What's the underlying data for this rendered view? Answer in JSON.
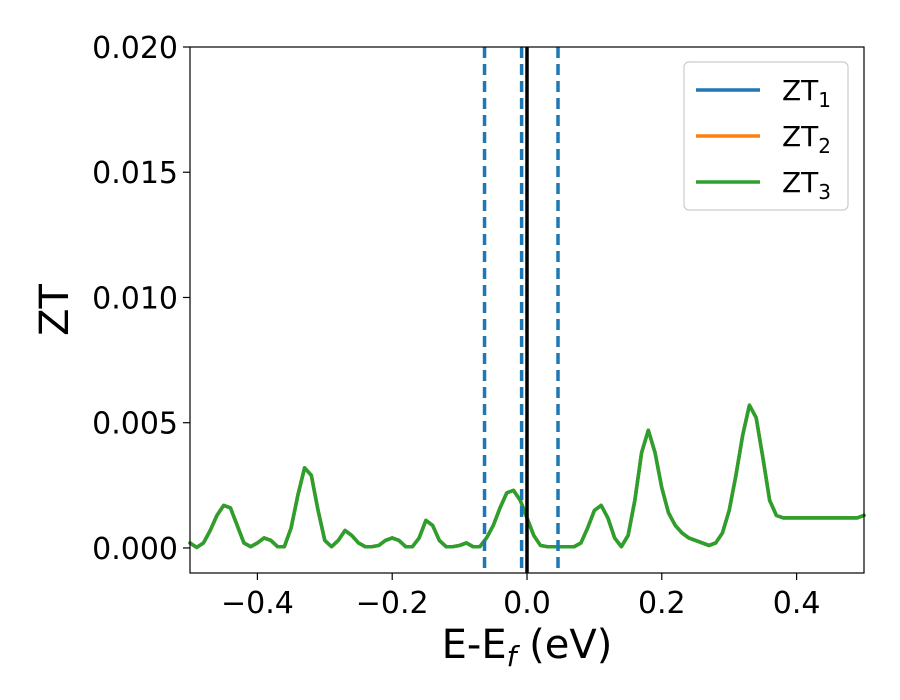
{
  "chart_data": {
    "type": "line",
    "xlabel": {
      "main": "E-E",
      "sub": "f",
      "tail": " (eV)"
    },
    "ylabel": "ZT",
    "xlim": [
      -0.5,
      0.5
    ],
    "ylim": [
      -0.001,
      0.02
    ],
    "x_ticks": [
      -0.4,
      -0.2,
      0.0,
      0.2,
      0.4
    ],
    "x_tick_labels": [
      "−0.4",
      "−0.2",
      "0.0",
      "0.2",
      "0.4"
    ],
    "y_ticks": [
      0.0,
      0.005,
      0.01,
      0.015,
      0.02
    ],
    "y_tick_labels": [
      "0.000",
      "0.005",
      "0.010",
      "0.015",
      "0.020"
    ],
    "grid": false,
    "legend_position": "top-right",
    "vlines_dashed": {
      "color": "#1f77b4",
      "x": [
        -0.063,
        -0.008,
        0.046
      ]
    },
    "vline_solid": {
      "color": "#000000",
      "x": 0.0
    },
    "x": [
      -0.5,
      -0.49,
      -0.48,
      -0.47,
      -0.46,
      -0.45,
      -0.44,
      -0.43,
      -0.42,
      -0.41,
      -0.4,
      -0.39,
      -0.38,
      -0.37,
      -0.36,
      -0.35,
      -0.34,
      -0.33,
      -0.32,
      -0.31,
      -0.3,
      -0.29,
      -0.28,
      -0.27,
      -0.26,
      -0.25,
      -0.24,
      -0.23,
      -0.22,
      -0.21,
      -0.2,
      -0.19,
      -0.18,
      -0.17,
      -0.16,
      -0.15,
      -0.14,
      -0.13,
      -0.12,
      -0.11,
      -0.1,
      -0.09,
      -0.08,
      -0.07,
      -0.06,
      -0.05,
      -0.04,
      -0.03,
      -0.02,
      -0.01,
      0.0,
      0.01,
      0.02,
      0.03,
      0.04,
      0.05,
      0.06,
      0.07,
      0.08,
      0.09,
      0.1,
      0.11,
      0.12,
      0.13,
      0.14,
      0.15,
      0.16,
      0.17,
      0.18,
      0.19,
      0.2,
      0.21,
      0.22,
      0.23,
      0.24,
      0.25,
      0.26,
      0.27,
      0.28,
      0.29,
      0.3,
      0.31,
      0.32,
      0.33,
      0.34,
      0.35,
      0.36,
      0.37,
      0.38,
      0.39,
      0.4,
      0.41,
      0.42,
      0.43,
      0.44,
      0.45,
      0.46,
      0.47,
      0.48,
      0.49,
      0.5
    ],
    "series": [
      {
        "name": "ZT",
        "sub": "1",
        "color": "#1f77b4",
        "values": [
          0.0002,
          2e-05,
          0.0002,
          0.0007,
          0.0013,
          0.0017,
          0.0016,
          0.0009,
          0.0002,
          5e-05,
          0.0002,
          0.0004,
          0.0003,
          5e-05,
          5e-05,
          0.0008,
          0.0021,
          0.0032,
          0.0029,
          0.0015,
          0.0003,
          5e-05,
          0.0003,
          0.0007,
          0.0005,
          0.0002,
          5e-05,
          5e-05,
          0.0001,
          0.0003,
          0.0004,
          0.0003,
          5e-05,
          5e-05,
          0.0004,
          0.0011,
          0.0009,
          0.0003,
          5e-05,
          5e-05,
          0.0001,
          0.0002,
          5e-05,
          5e-05,
          0.0004,
          0.0009,
          0.0016,
          0.0022,
          0.0023,
          0.0019,
          0.0012,
          0.0005,
          0.0001,
          5e-05,
          5e-05,
          5e-05,
          5e-05,
          5e-05,
          0.0002,
          0.0008,
          0.0015,
          0.0017,
          0.0012,
          0.0004,
          5e-05,
          0.0005,
          0.0019,
          0.0038,
          0.0047,
          0.0038,
          0.0024,
          0.0014,
          0.0009,
          0.0006,
          0.0004,
          0.0003,
          0.0002,
          0.0001,
          0.0002,
          0.0006,
          0.0015,
          0.0029,
          0.0045,
          0.0057,
          0.0052,
          0.0036,
          0.0019,
          0.0013,
          0.0012,
          0.0012,
          0.0012,
          0.0012,
          0.0012,
          0.0012,
          0.0012,
          0.0012,
          0.0012,
          0.0012,
          0.0012,
          0.0012,
          0.0013
        ]
      },
      {
        "name": "ZT",
        "sub": "2",
        "color": "#ff7f0e",
        "values": [
          0.0002,
          2e-05,
          0.0002,
          0.0007,
          0.0013,
          0.0017,
          0.0016,
          0.0009,
          0.0002,
          5e-05,
          0.0002,
          0.0004,
          0.0003,
          5e-05,
          5e-05,
          0.0008,
          0.0021,
          0.0032,
          0.0029,
          0.0015,
          0.0003,
          5e-05,
          0.0003,
          0.0007,
          0.0005,
          0.0002,
          5e-05,
          5e-05,
          0.0001,
          0.0003,
          0.0004,
          0.0003,
          5e-05,
          5e-05,
          0.0004,
          0.0011,
          0.0009,
          0.0003,
          5e-05,
          5e-05,
          0.0001,
          0.0002,
          5e-05,
          5e-05,
          0.0004,
          0.0009,
          0.0016,
          0.0022,
          0.0023,
          0.0019,
          0.0012,
          0.0005,
          0.0001,
          5e-05,
          5e-05,
          5e-05,
          5e-05,
          5e-05,
          0.0002,
          0.0008,
          0.0015,
          0.0017,
          0.0012,
          0.0004,
          5e-05,
          0.0005,
          0.0019,
          0.0038,
          0.0047,
          0.0038,
          0.0024,
          0.0014,
          0.0009,
          0.0006,
          0.0004,
          0.0003,
          0.0002,
          0.0001,
          0.0002,
          0.0006,
          0.0015,
          0.0029,
          0.0045,
          0.0057,
          0.0052,
          0.0036,
          0.0019,
          0.0013,
          0.0012,
          0.0012,
          0.0012,
          0.0012,
          0.0012,
          0.0012,
          0.0012,
          0.0012,
          0.0012,
          0.0012,
          0.0012,
          0.0012,
          0.0013
        ]
      },
      {
        "name": "ZT",
        "sub": "3",
        "color": "#2ca02c",
        "values": [
          0.0002,
          2e-05,
          0.0002,
          0.0007,
          0.0013,
          0.0017,
          0.0016,
          0.0009,
          0.0002,
          5e-05,
          0.0002,
          0.0004,
          0.0003,
          5e-05,
          5e-05,
          0.0008,
          0.0021,
          0.0032,
          0.0029,
          0.0015,
          0.0003,
          5e-05,
          0.0003,
          0.0007,
          0.0005,
          0.0002,
          5e-05,
          5e-05,
          0.0001,
          0.0003,
          0.0004,
          0.0003,
          5e-05,
          5e-05,
          0.0004,
          0.0011,
          0.0009,
          0.0003,
          5e-05,
          5e-05,
          0.0001,
          0.0002,
          5e-05,
          5e-05,
          0.0004,
          0.0009,
          0.0016,
          0.0022,
          0.0023,
          0.0019,
          0.0012,
          0.0005,
          0.0001,
          5e-05,
          5e-05,
          5e-05,
          5e-05,
          5e-05,
          0.0002,
          0.0008,
          0.0015,
          0.0017,
          0.0012,
          0.0004,
          5e-05,
          0.0005,
          0.0019,
          0.0038,
          0.0047,
          0.0038,
          0.0024,
          0.0014,
          0.0009,
          0.0006,
          0.0004,
          0.0003,
          0.0002,
          0.0001,
          0.0002,
          0.0006,
          0.0015,
          0.0029,
          0.0045,
          0.0057,
          0.0052,
          0.0036,
          0.0019,
          0.0013,
          0.0012,
          0.0012,
          0.0012,
          0.0012,
          0.0012,
          0.0012,
          0.0012,
          0.0012,
          0.0012,
          0.0012,
          0.0012,
          0.0012,
          0.0013
        ]
      }
    ]
  }
}
